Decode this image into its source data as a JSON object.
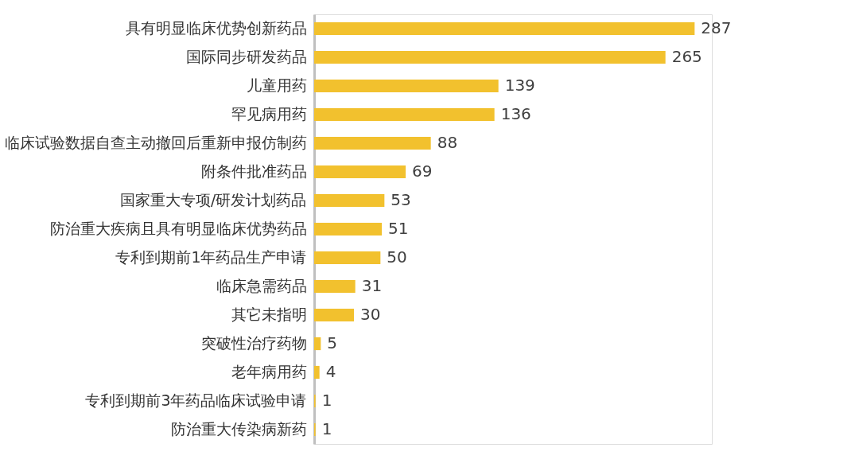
{
  "chart_data": {
    "type": "bar",
    "orientation": "horizontal",
    "data_labels": true,
    "color": "#f2c12e",
    "categories": [
      "具有明显临床优势创新药品",
      "国际同步研发药品",
      "儿童用药",
      "罕见病用药",
      "临床试验数据自查主动撤回后重新申报仿制药",
      "附条件批准药品",
      "国家重大专项/研发计划药品",
      "防治重大疾病且具有明显临床优势药品",
      "专利到期前1年药品生产申请",
      "临床急需药品",
      "其它未指明",
      "突破性治疗药物",
      "老年病用药",
      "专利到期前3年药品临床试验申请",
      "防治重大传染病新药"
    ],
    "values": [
      287,
      265,
      139,
      136,
      88,
      69,
      53,
      51,
      50,
      31,
      30,
      5,
      4,
      1,
      1
    ]
  }
}
